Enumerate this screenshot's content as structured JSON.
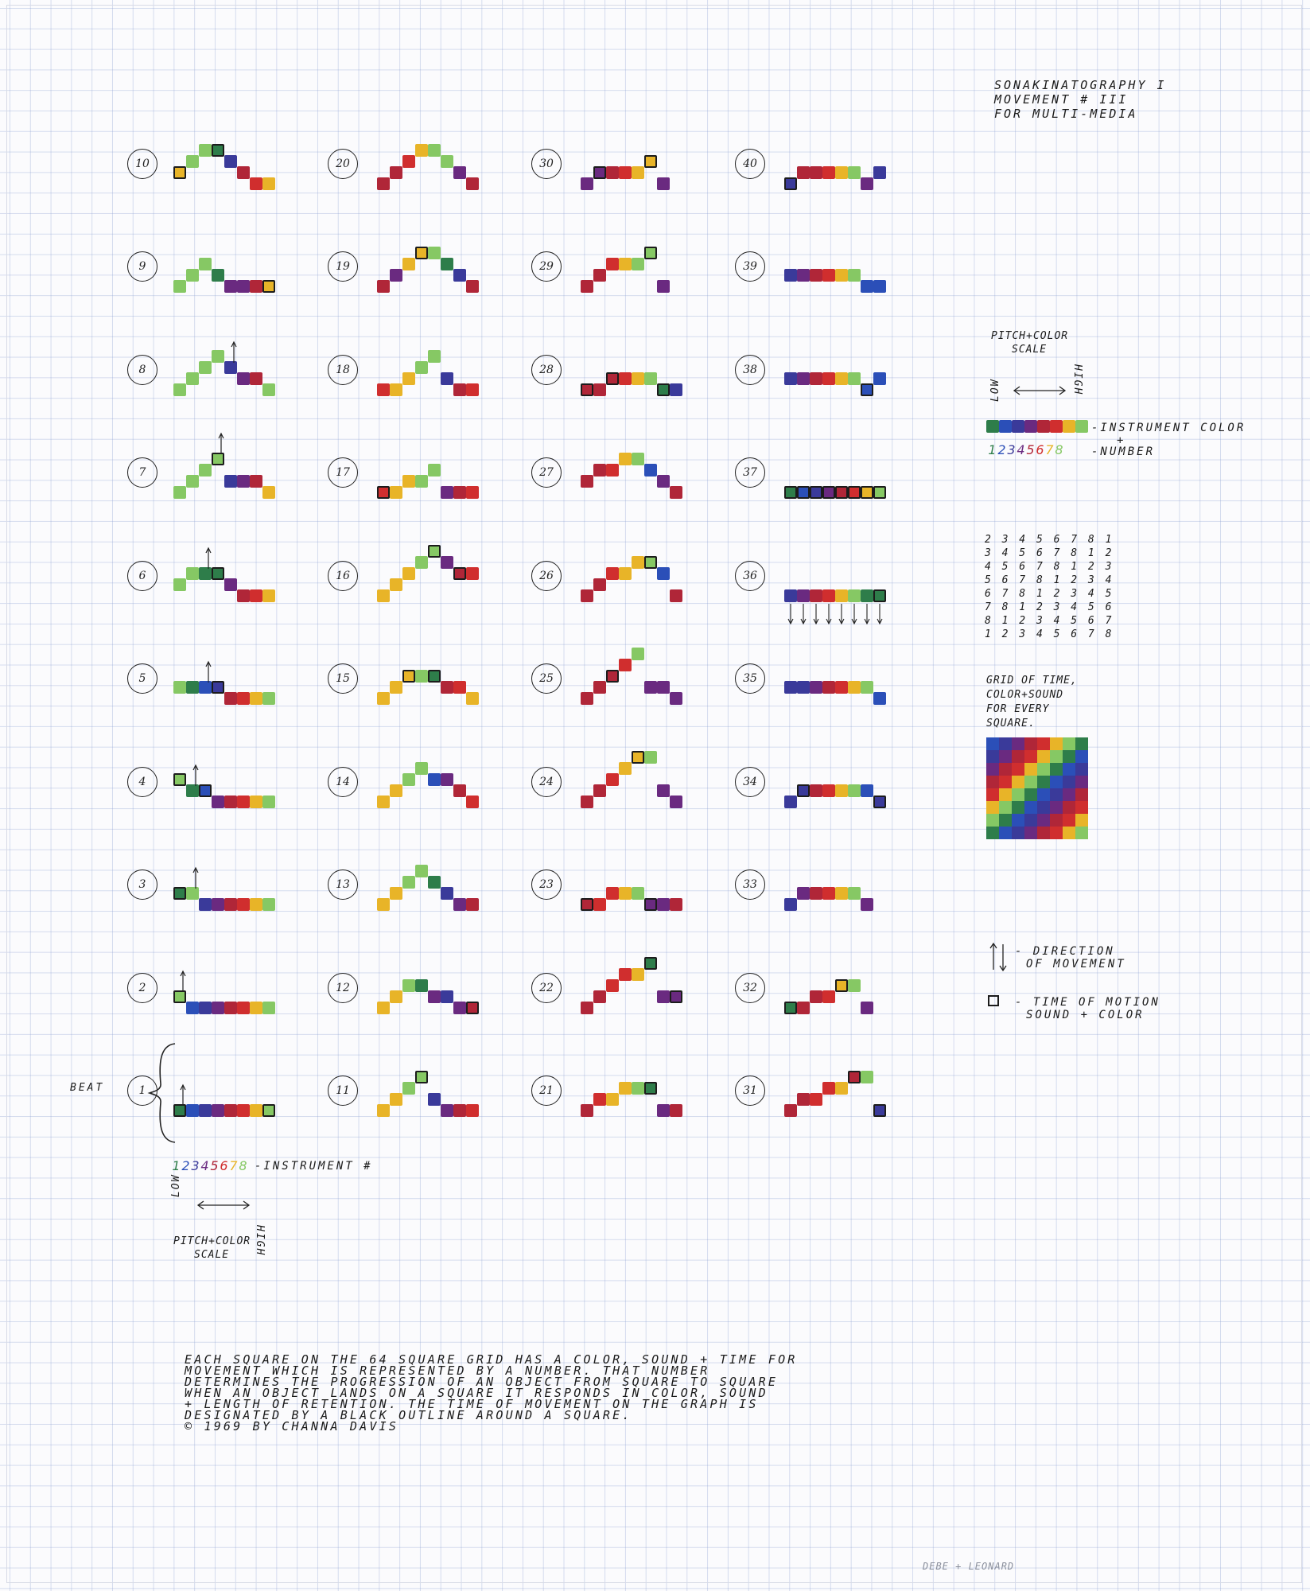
{
  "title": {
    "lines": [
      "SONAKINATOGRAPHY I",
      "MOVEMENT # III",
      "FOR MULTI-MEDIA"
    ]
  },
  "colors": {
    "1": "#2e7d4a",
    "2": "#2b4fb8",
    "3": "#3a3a9a",
    "4": "#6a2a80",
    "5": "#b02638",
    "6": "#d02e2e",
    "7": "#e8b428",
    "8": "#86c864"
  },
  "beats": [
    {
      "id": 1,
      "label": "1"
    },
    {
      "id": 2,
      "label": "2"
    },
    {
      "id": 3,
      "label": "3"
    },
    {
      "id": 4,
      "label": "4"
    },
    {
      "id": 5,
      "label": "5"
    },
    {
      "id": 6,
      "label": "6"
    },
    {
      "id": 7,
      "label": "7"
    },
    {
      "id": 8,
      "label": "8"
    },
    {
      "id": 9,
      "label": "9"
    },
    {
      "id": 10,
      "label": "10"
    },
    {
      "id": 11,
      "label": "11"
    },
    {
      "id": 12,
      "label": "12"
    },
    {
      "id": 13,
      "label": "13"
    },
    {
      "id": 14,
      "label": "14"
    },
    {
      "id": 15,
      "label": "15"
    },
    {
      "id": 16,
      "label": "16"
    },
    {
      "id": 17,
      "label": "17"
    },
    {
      "id": 18,
      "label": "18"
    },
    {
      "id": 19,
      "label": "19"
    },
    {
      "id": 20,
      "label": "20"
    },
    {
      "id": 21,
      "label": "21"
    },
    {
      "id": 22,
      "label": "22"
    },
    {
      "id": 23,
      "label": "23"
    },
    {
      "id": 24,
      "label": "24"
    },
    {
      "id": 25,
      "label": "25"
    },
    {
      "id": 26,
      "label": "26"
    },
    {
      "id": 27,
      "label": "27"
    },
    {
      "id": 28,
      "label": "28"
    },
    {
      "id": 29,
      "label": "29"
    },
    {
      "id": 30,
      "label": "30"
    },
    {
      "id": 31,
      "label": "31"
    },
    {
      "id": 32,
      "label": "32"
    },
    {
      "id": 33,
      "label": "33"
    },
    {
      "id": 34,
      "label": "34"
    },
    {
      "id": 35,
      "label": "35"
    },
    {
      "id": 36,
      "label": "36"
    },
    {
      "id": 37,
      "label": "37"
    },
    {
      "id": 38,
      "label": "38"
    },
    {
      "id": 39,
      "label": "39"
    },
    {
      "id": 40,
      "label": "40"
    }
  ],
  "beat_label": "BEAT",
  "instrument_numbers": [
    "1",
    "2",
    "3",
    "4",
    "5",
    "6",
    "7",
    "8"
  ],
  "instrument_label": "-INSTRUMENT #",
  "scale_low": "LOW",
  "scale_high": "HIGH",
  "scale_caption": [
    "PITCH+COLOR",
    "SCALE"
  ],
  "right_scale_caption": [
    "PITCH+COLOR",
    "SCALE"
  ],
  "right_instrument_label": [
    "-INSTRUMENT COLOR",
    "+",
    "-NUMBER"
  ],
  "matrix_rows": [
    "2 3 4 5 6 7 8 1",
    "3 4 5 6 7 8 1 2",
    "4 5 6 7 8 1 2 3",
    "5 6 7 8 1 2 3 4",
    "6 7 8 1 2 3 4 5",
    "7 8 1 2 3 4 5 6",
    "8 1 2 3 4 5 6 7",
    "1 2 3 4 5 6 7 8"
  ],
  "grid_caption": [
    "GRID OF TIME,",
    "COLOR+SOUND",
    "FOR EVERY",
    "SQUARE."
  ],
  "legend_direction": [
    "- DIRECTION",
    "OF MOVEMENT"
  ],
  "legend_time": [
    "- TIME OF MOTION",
    "SOUND + COLOR"
  ],
  "paragraph": [
    "EACH SQUARE ON THE 64 SQUARE GRID HAS A COLOR, SOUND + TIME FOR",
    "MOVEMENT WHICH IS REPRESENTED BY A NUMBER. THAT NUMBER",
    "DETERMINES THE PROGRESSION OF AN OBJECT FROM SQUARE TO SQUARE",
    "WHEN AN OBJECT LANDS ON A SQUARE IT RESPONDS IN COLOR, SOUND",
    "+ LENGTH OF RETENTION. THE TIME OF MOVEMENT ON THE GRAPH IS",
    "DESIGNATED BY A BLACK OUTLINE AROUND A SQUARE.",
    "© 1969 BY CHANNA DAVIS"
  ],
  "footer_signature": "DEBE + LEONARD"
}
